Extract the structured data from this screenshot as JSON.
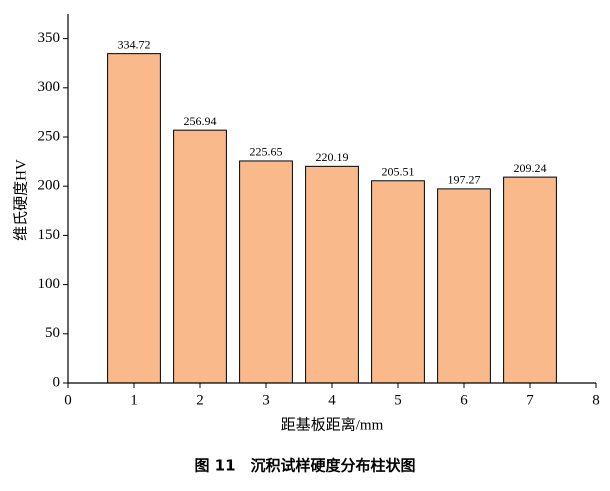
{
  "chart_data": {
    "type": "bar",
    "caption": "图 11　沉积试样硬度分布柱状图",
    "xlabel": "距基板距离/mm",
    "ylabel": "维氏硬度HV",
    "x": [
      1,
      2,
      3,
      4,
      5,
      6,
      7
    ],
    "values": [
      334.72,
      256.94,
      225.65,
      220.19,
      205.51,
      197.27,
      209.24
    ],
    "color": "#f9b98b",
    "xlim": [
      0,
      8
    ],
    "xticks": [
      0,
      1,
      2,
      3,
      4,
      5,
      6,
      7,
      8
    ],
    "ylim": [
      0,
      375
    ],
    "yticks": [
      0,
      50,
      100,
      150,
      200,
      250,
      300,
      350
    ],
    "grid": false
  }
}
